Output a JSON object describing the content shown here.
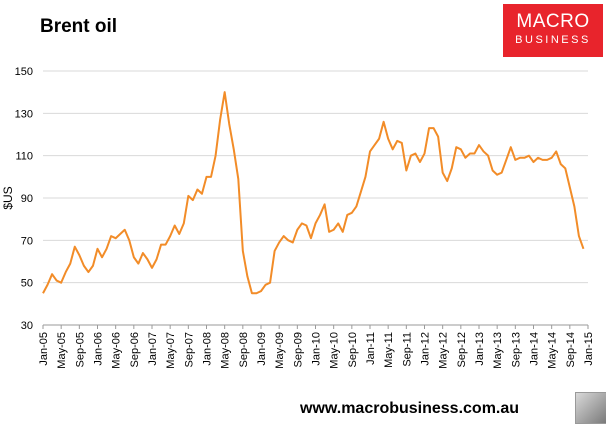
{
  "header": {
    "title": "Brent oil",
    "logo_line1": "MACRO",
    "logo_line2": "BUSINESS"
  },
  "footer": {
    "url": "www.macrobusiness.com.au"
  },
  "chart_data": {
    "type": "line",
    "title": "Brent oil",
    "xlabel": "",
    "ylabel": "$US",
    "ylim": [
      30,
      150
    ],
    "yticks": [
      30,
      50,
      70,
      90,
      110,
      130,
      150
    ],
    "xlim": [
      "Jan-05",
      "Jan-15"
    ],
    "xticks": [
      "Jan-05",
      "May-05",
      "Sep-05",
      "Jan-06",
      "May-06",
      "Sep-06",
      "Jan-07",
      "May-07",
      "Sep-07",
      "Jan-08",
      "May-08",
      "Sep-08",
      "Jan-09",
      "May-09",
      "Sep-09",
      "Jan-10",
      "May-10",
      "Sep-10",
      "Jan-11",
      "May-11",
      "Sep-11",
      "Jan-12",
      "May-12",
      "Sep-12",
      "Jan-13",
      "May-13",
      "Sep-13",
      "Jan-14",
      "May-14",
      "Sep-14",
      "Jan-15"
    ],
    "grid": "horizontal",
    "line_color": "#f28c28",
    "series": [
      {
        "values": [
          [
            "Jan-05",
            45
          ],
          [
            "Feb-05",
            49
          ],
          [
            "Mar-05",
            54
          ],
          [
            "Apr-05",
            51
          ],
          [
            "May-05",
            50
          ],
          [
            "Jun-05",
            55
          ],
          [
            "Jul-05",
            59
          ],
          [
            "Aug-05",
            67
          ],
          [
            "Sep-05",
            63
          ],
          [
            "Oct-05",
            58
          ],
          [
            "Nov-05",
            55
          ],
          [
            "Dec-05",
            58
          ],
          [
            "Jan-06",
            66
          ],
          [
            "Feb-06",
            62
          ],
          [
            "Mar-06",
            66
          ],
          [
            "Apr-06",
            72
          ],
          [
            "May-06",
            71
          ],
          [
            "Jun-06",
            73
          ],
          [
            "Jul-06",
            75
          ],
          [
            "Aug-06",
            70
          ],
          [
            "Sep-06",
            62
          ],
          [
            "Oct-06",
            59
          ],
          [
            "Nov-06",
            64
          ],
          [
            "Dec-06",
            61
          ],
          [
            "Jan-07",
            57
          ],
          [
            "Feb-07",
            61
          ],
          [
            "Mar-07",
            68
          ],
          [
            "Apr-07",
            68
          ],
          [
            "May-07",
            72
          ],
          [
            "Jun-07",
            77
          ],
          [
            "Jul-07",
            73
          ],
          [
            "Aug-07",
            78
          ],
          [
            "Sep-07",
            91
          ],
          [
            "Oct-07",
            89
          ],
          [
            "Nov-07",
            94
          ],
          [
            "Dec-07",
            92
          ],
          [
            "Jan-08",
            100
          ],
          [
            "Feb-08",
            100
          ],
          [
            "Mar-08",
            110
          ],
          [
            "Apr-08",
            127
          ],
          [
            "May-08",
            140
          ],
          [
            "Jun-08",
            125
          ],
          [
            "Jul-08",
            113
          ],
          [
            "Aug-08",
            99
          ],
          [
            "Sep-08",
            65
          ],
          [
            "Oct-08",
            53
          ],
          [
            "Nov-08",
            45
          ],
          [
            "Dec-08",
            45
          ],
          [
            "Jan-09",
            46
          ],
          [
            "Feb-09",
            49
          ],
          [
            "Mar-09",
            50
          ],
          [
            "Apr-09",
            65
          ],
          [
            "May-09",
            69
          ],
          [
            "Jun-09",
            72
          ],
          [
            "Jul-09",
            70
          ],
          [
            "Aug-09",
            69
          ],
          [
            "Sep-09",
            75
          ],
          [
            "Oct-09",
            78
          ],
          [
            "Nov-09",
            77
          ],
          [
            "Dec-09",
            71
          ],
          [
            "Jan-10",
            78
          ],
          [
            "Feb-10",
            82
          ],
          [
            "Mar-10",
            87
          ],
          [
            "Apr-10",
            74
          ],
          [
            "May-10",
            75
          ],
          [
            "Jun-10",
            78
          ],
          [
            "Jul-10",
            74
          ],
          [
            "Aug-10",
            82
          ],
          [
            "Sep-10",
            83
          ],
          [
            "Oct-10",
            86
          ],
          [
            "Nov-10",
            93
          ],
          [
            "Dec-10",
            100
          ],
          [
            "Jan-11",
            112
          ],
          [
            "Feb-11",
            115
          ],
          [
            "Mar-11",
            118
          ],
          [
            "Apr-11",
            126
          ],
          [
            "May-11",
            118
          ],
          [
            "Jun-11",
            113
          ],
          [
            "Jul-11",
            117
          ],
          [
            "Aug-11",
            116
          ],
          [
            "Sep-11",
            103
          ],
          [
            "Oct-11",
            110
          ],
          [
            "Nov-11",
            111
          ],
          [
            "Dec-11",
            107
          ],
          [
            "Jan-12",
            111
          ],
          [
            "Feb-12",
            123
          ],
          [
            "Mar-12",
            123
          ],
          [
            "Apr-12",
            119
          ],
          [
            "May-12",
            102
          ],
          [
            "Jun-12",
            98
          ],
          [
            "Jul-12",
            104
          ],
          [
            "Aug-12",
            114
          ],
          [
            "Sep-12",
            113
          ],
          [
            "Oct-12",
            109
          ],
          [
            "Nov-12",
            111
          ],
          [
            "Dec-12",
            111
          ],
          [
            "Jan-13",
            115
          ],
          [
            "Feb-13",
            112
          ],
          [
            "Mar-13",
            110
          ],
          [
            "Apr-13",
            103
          ],
          [
            "May-13",
            101
          ],
          [
            "Jun-13",
            102
          ],
          [
            "Jul-13",
            108
          ],
          [
            "Aug-13",
            114
          ],
          [
            "Sep-13",
            108
          ],
          [
            "Oct-13",
            109
          ],
          [
            "Nov-13",
            109
          ],
          [
            "Dec-13",
            110
          ],
          [
            "Jan-14",
            107
          ],
          [
            "Feb-14",
            109
          ],
          [
            "Mar-14",
            108
          ],
          [
            "Apr-14",
            108
          ],
          [
            "May-14",
            109
          ],
          [
            "Jun-14",
            112
          ],
          [
            "Jul-14",
            106
          ],
          [
            "Aug-14",
            104
          ],
          [
            "Sep-14",
            95
          ],
          [
            "Oct-14",
            86
          ],
          [
            "Nov-14",
            72
          ],
          [
            "Dec-14",
            66
          ]
        ]
      }
    ]
  }
}
